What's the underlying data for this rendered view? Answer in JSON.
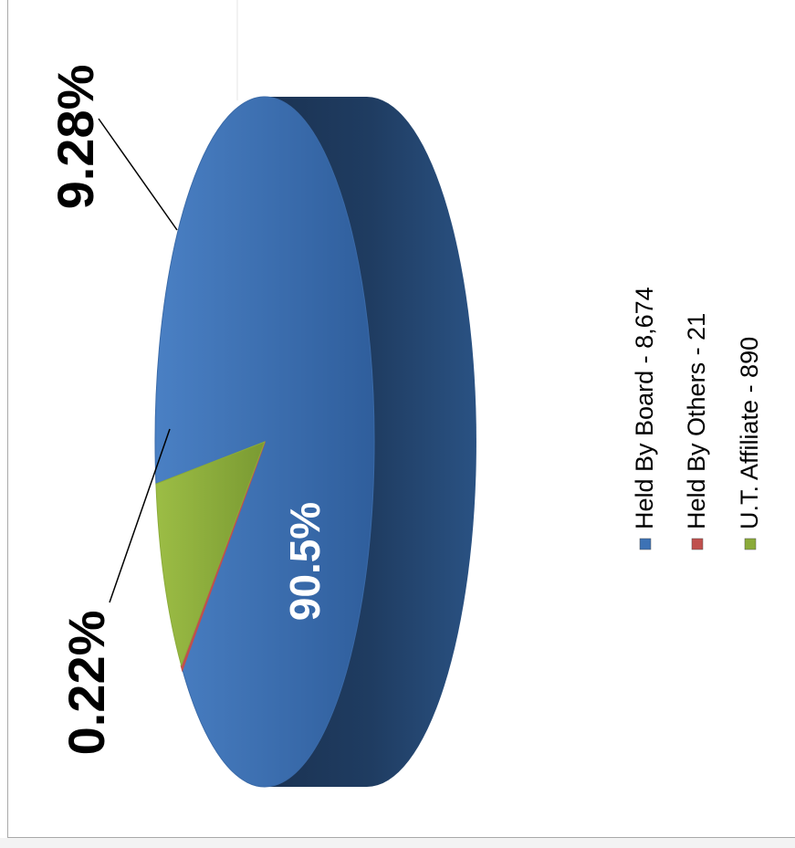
{
  "chart_data": {
    "type": "pie",
    "subtype": "3d-cylinder",
    "orientation": "rotated-90-ccw",
    "title": "",
    "slices": [
      {
        "name": "Held By Board",
        "value": 8674,
        "percent_label": "90.5%",
        "color": "#3d72b5",
        "legend_label": "Held By Board - 8,674"
      },
      {
        "name": "Held By Others",
        "value": 21,
        "percent_label": "0.22%",
        "color": "#c0504d",
        "legend_label": "Held By Others - 21"
      },
      {
        "name": "U.T. Affiliate",
        "value": 890,
        "percent_label": "9.28%",
        "color": "#8bab3a",
        "legend_label": "U.T. Affiliate - 890"
      }
    ],
    "legend_position": "right",
    "side_color": "#203f66"
  }
}
